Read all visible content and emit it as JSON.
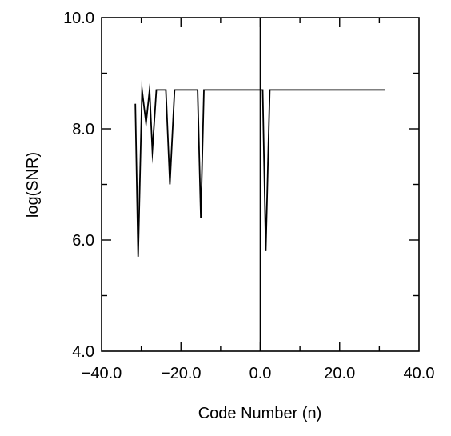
{
  "chart_data": {
    "type": "line",
    "title": "",
    "xlabel": "Code Number (n)",
    "ylabel": "log(SNR)",
    "xlim": [
      -40,
      40
    ],
    "ylim": [
      4,
      10
    ],
    "x_ticks": [
      -40,
      -20,
      0,
      20,
      40
    ],
    "x_tick_labels": [
      "−40.0",
      "−20.0",
      "0.0",
      "20.0",
      "40.0"
    ],
    "y_ticks": [
      4,
      6,
      8,
      10
    ],
    "y_tick_labels": [
      "4.0",
      "6.0",
      "8.0",
      "10.0"
    ],
    "grid": false,
    "reference_lines": [
      {
        "orientation": "vertical",
        "x": 0
      }
    ],
    "series": [
      {
        "x": [
          -31.5,
          -30.8,
          -29.8,
          -28.8,
          -27.9,
          -27.2,
          -26.2,
          -25.2,
          -23.8,
          -22.8,
          -21.6,
          -15.8,
          -15.0,
          -14.2,
          0,
          0.6,
          1.4,
          2.4,
          31.5
        ],
        "y": [
          8.45,
          5.7,
          8.7,
          8.1,
          8.7,
          7.6,
          8.7,
          8.7,
          8.7,
          7.0,
          8.7,
          8.7,
          6.4,
          8.7,
          8.7,
          8.7,
          5.8,
          8.7,
          8.7
        ]
      }
    ]
  }
}
